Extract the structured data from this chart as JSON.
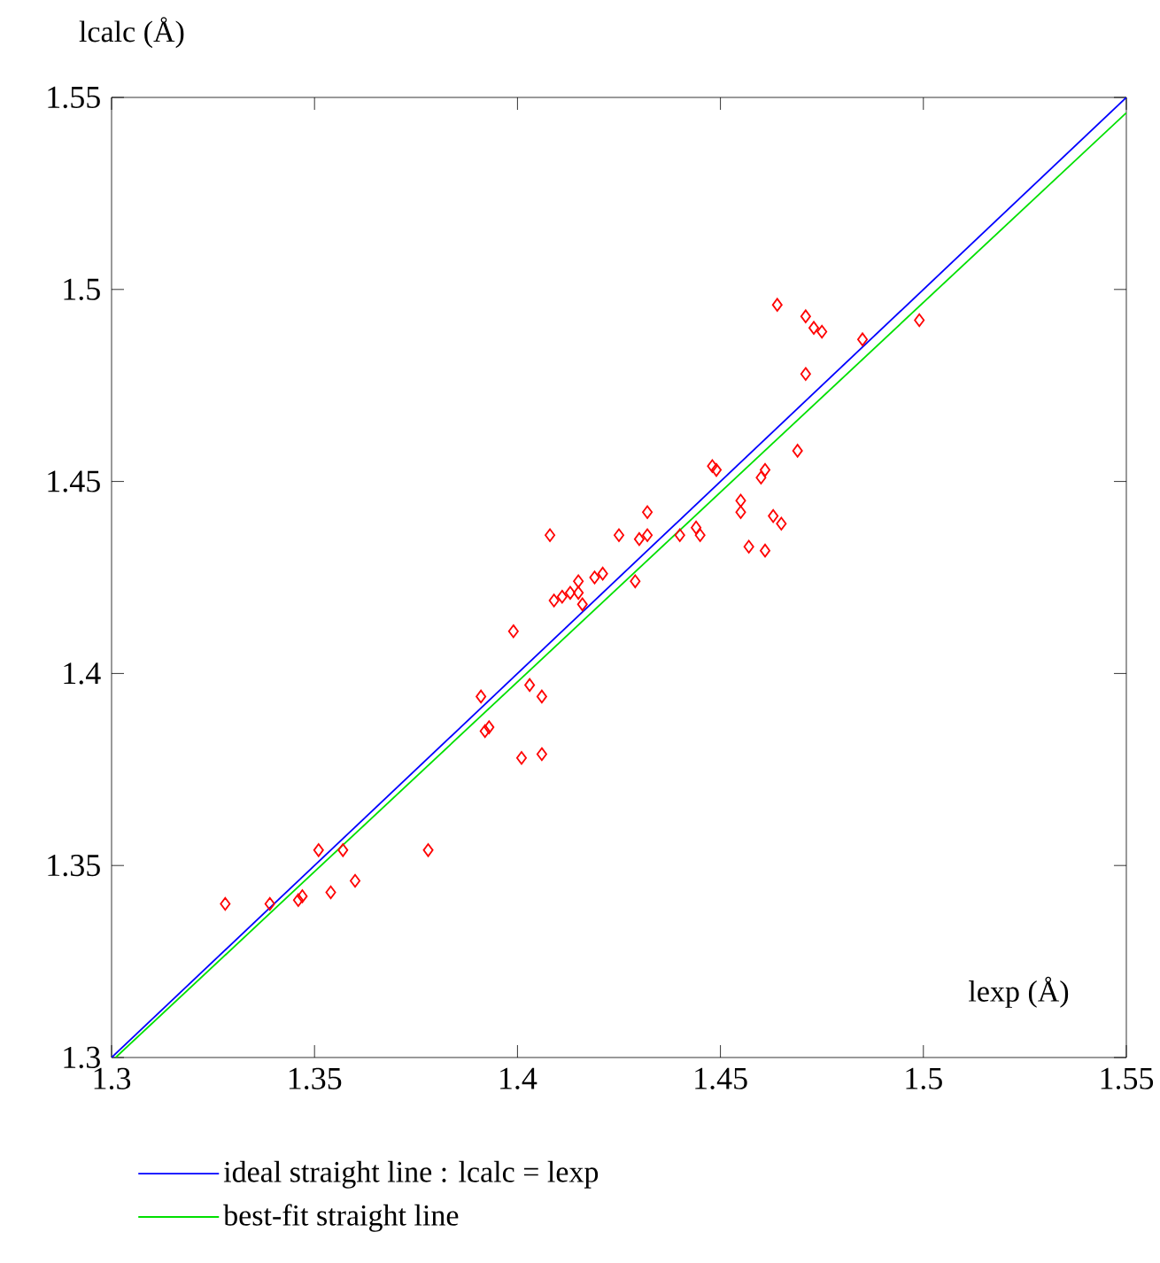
{
  "chart_data": {
    "type": "scatter",
    "xlabel": "lexp (Å)",
    "ylabel": "lcalc (Å)",
    "xlim": [
      1.3,
      1.55
    ],
    "ylim": [
      1.3,
      1.55
    ],
    "xticks": [
      1.3,
      1.35,
      1.4,
      1.45,
      1.5,
      1.55
    ],
    "yticks": [
      1.3,
      1.35,
      1.4,
      1.45,
      1.5,
      1.55
    ],
    "legend": "bottom",
    "series": [
      {
        "marker": "diamond",
        "color": "#ff0000",
        "x": [
          1.328,
          1.339,
          1.346,
          1.347,
          1.351,
          1.354,
          1.357,
          1.36,
          1.378,
          1.391,
          1.392,
          1.393,
          1.399,
          1.401,
          1.403,
          1.406,
          1.406,
          1.408,
          1.409,
          1.411,
          1.413,
          1.415,
          1.415,
          1.416,
          1.419,
          1.421,
          1.425,
          1.429,
          1.43,
          1.432,
          1.432,
          1.44,
          1.444,
          1.445,
          1.449,
          1.448,
          1.455,
          1.455,
          1.457,
          1.46,
          1.461,
          1.461,
          1.463,
          1.465,
          1.464,
          1.469,
          1.471,
          1.471,
          1.473,
          1.475,
          1.485,
          1.499
        ],
        "values": [
          1.34,
          1.34,
          1.341,
          1.342,
          1.354,
          1.343,
          1.354,
          1.346,
          1.354,
          1.394,
          1.385,
          1.386,
          1.411,
          1.378,
          1.397,
          1.379,
          1.394,
          1.436,
          1.419,
          1.42,
          1.421,
          1.421,
          1.424,
          1.418,
          1.425,
          1.426,
          1.436,
          1.424,
          1.435,
          1.436,
          1.442,
          1.436,
          1.438,
          1.436,
          1.453,
          1.454,
          1.445,
          1.442,
          1.433,
          1.451,
          1.453,
          1.432,
          1.441,
          1.439,
          1.496,
          1.458,
          1.493,
          1.478,
          1.49,
          1.489,
          1.487,
          1.492
        ]
      },
      {
        "type": "line",
        "marker": "none",
        "name": "ideal straight line : lcalc = lexp",
        "color": "#0000ff",
        "x": [
          1.3,
          1.55
        ],
        "values": [
          1.3,
          1.55
        ]
      },
      {
        "type": "line",
        "marker": "none",
        "name": "best-fit straight line",
        "color": "#00e000",
        "x": [
          1.301,
          1.55
        ],
        "values": [
          1.3,
          1.546
        ]
      }
    ]
  }
}
